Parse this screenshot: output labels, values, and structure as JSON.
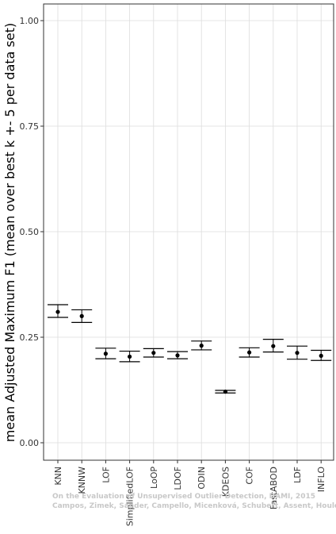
{
  "chart_data": {
    "type": "scatter",
    "ylabel": "mean Adjusted Maximum F1 (mean over best k +- 5 per data set)",
    "xlabel": "",
    "ylim": [
      0,
      1
    ],
    "y_ticks": [
      "0.00",
      "0.25",
      "0.50",
      "0.75",
      "1.00"
    ],
    "y_tick_values": [
      0,
      0.25,
      0.5,
      0.75,
      1.0
    ],
    "grid": true,
    "categories": [
      "KNN",
      "KNNW",
      "LOF",
      "SimplifiedLOF",
      "LoOP",
      "LDOF",
      "ODIN",
      "KDEOS",
      "COF",
      "FastABOD",
      "LDF",
      "INFLO"
    ],
    "series": [
      {
        "mean": [
          0.31,
          0.3,
          0.211,
          0.204,
          0.213,
          0.207,
          0.23,
          0.121,
          0.214,
          0.229,
          0.213,
          0.206
        ],
        "upper": [
          0.327,
          0.315,
          0.224,
          0.217,
          0.223,
          0.216,
          0.241,
          0.124,
          0.225,
          0.245,
          0.229,
          0.219
        ],
        "lower": [
          0.297,
          0.285,
          0.199,
          0.192,
          0.203,
          0.199,
          0.22,
          0.118,
          0.203,
          0.215,
          0.198,
          0.195
        ]
      }
    ],
    "watermark": [
      "On the Evaluation of Unsupervised Outlier Detection, DAMI, 2015",
      "Campos, Zimek, Sander, Campello, Micenková, Schubert, Assent, Houle"
    ]
  },
  "colors": {
    "background": "#ffffff",
    "grid": "#dddddd",
    "border": "#333333",
    "mark": "#000000"
  }
}
